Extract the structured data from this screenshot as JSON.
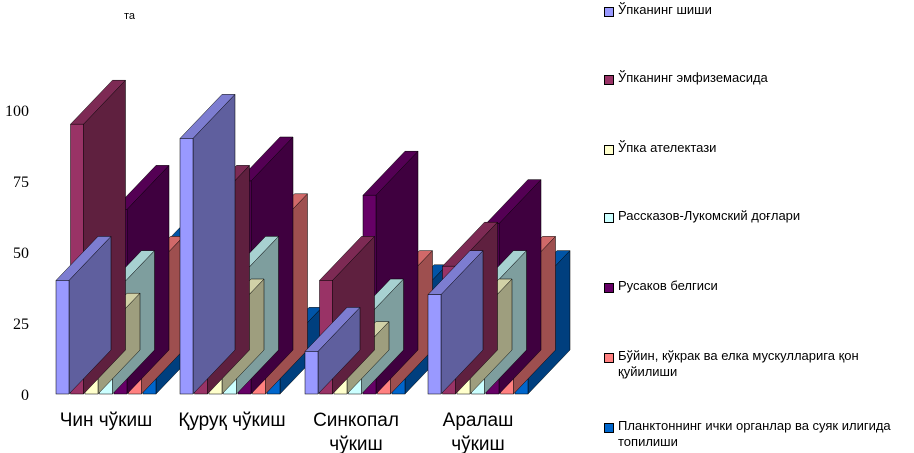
{
  "stray_text": "та",
  "chart_data": {
    "type": "bar",
    "title": "",
    "xlabel": "",
    "ylabel": "",
    "ylim": [
      0,
      100
    ],
    "yticks": [
      0,
      25,
      50,
      75,
      100
    ],
    "grid": false,
    "legend_position": "right",
    "categories": [
      [
        "Чин чўкиш"
      ],
      [
        "Қуруқ чўкиш"
      ],
      [
        "Синкопал",
        "чўкиш"
      ],
      [
        "Аралаш",
        "чўкиш"
      ]
    ],
    "series": [
      {
        "name": "Ўпканинг шиши",
        "color": "#9999FF",
        "values": [
          40,
          90,
          15,
          35
        ]
      },
      {
        "name": "Ўпканинг эмфиземасида",
        "color": "#993366",
        "values": [
          95,
          65,
          40,
          45
        ]
      },
      {
        "name": "Ўпка ателектази",
        "color": "#FFFFCC",
        "values": [
          20,
          25,
          10,
          25
        ]
      },
      {
        "name": "Рассказов-Лукомский доғлари",
        "color": "#CCFFFF",
        "values": [
          35,
          40,
          25,
          35
        ]
      },
      {
        "name": "Русаков белгиси",
        "color": "#660066",
        "values": [
          65,
          75,
          70,
          60
        ]
      },
      {
        "name": "Бўйин, кўкрак ва елка мускулларига қон қуйилиши",
        "color": "#FF8080",
        "values": [
          40,
          55,
          35,
          40
        ]
      },
      {
        "name": "Планктоннинг ички органлар ва суяк илигида топилиши",
        "color": "#0066CC",
        "values": [
          45,
          15,
          30,
          35
        ]
      }
    ]
  }
}
